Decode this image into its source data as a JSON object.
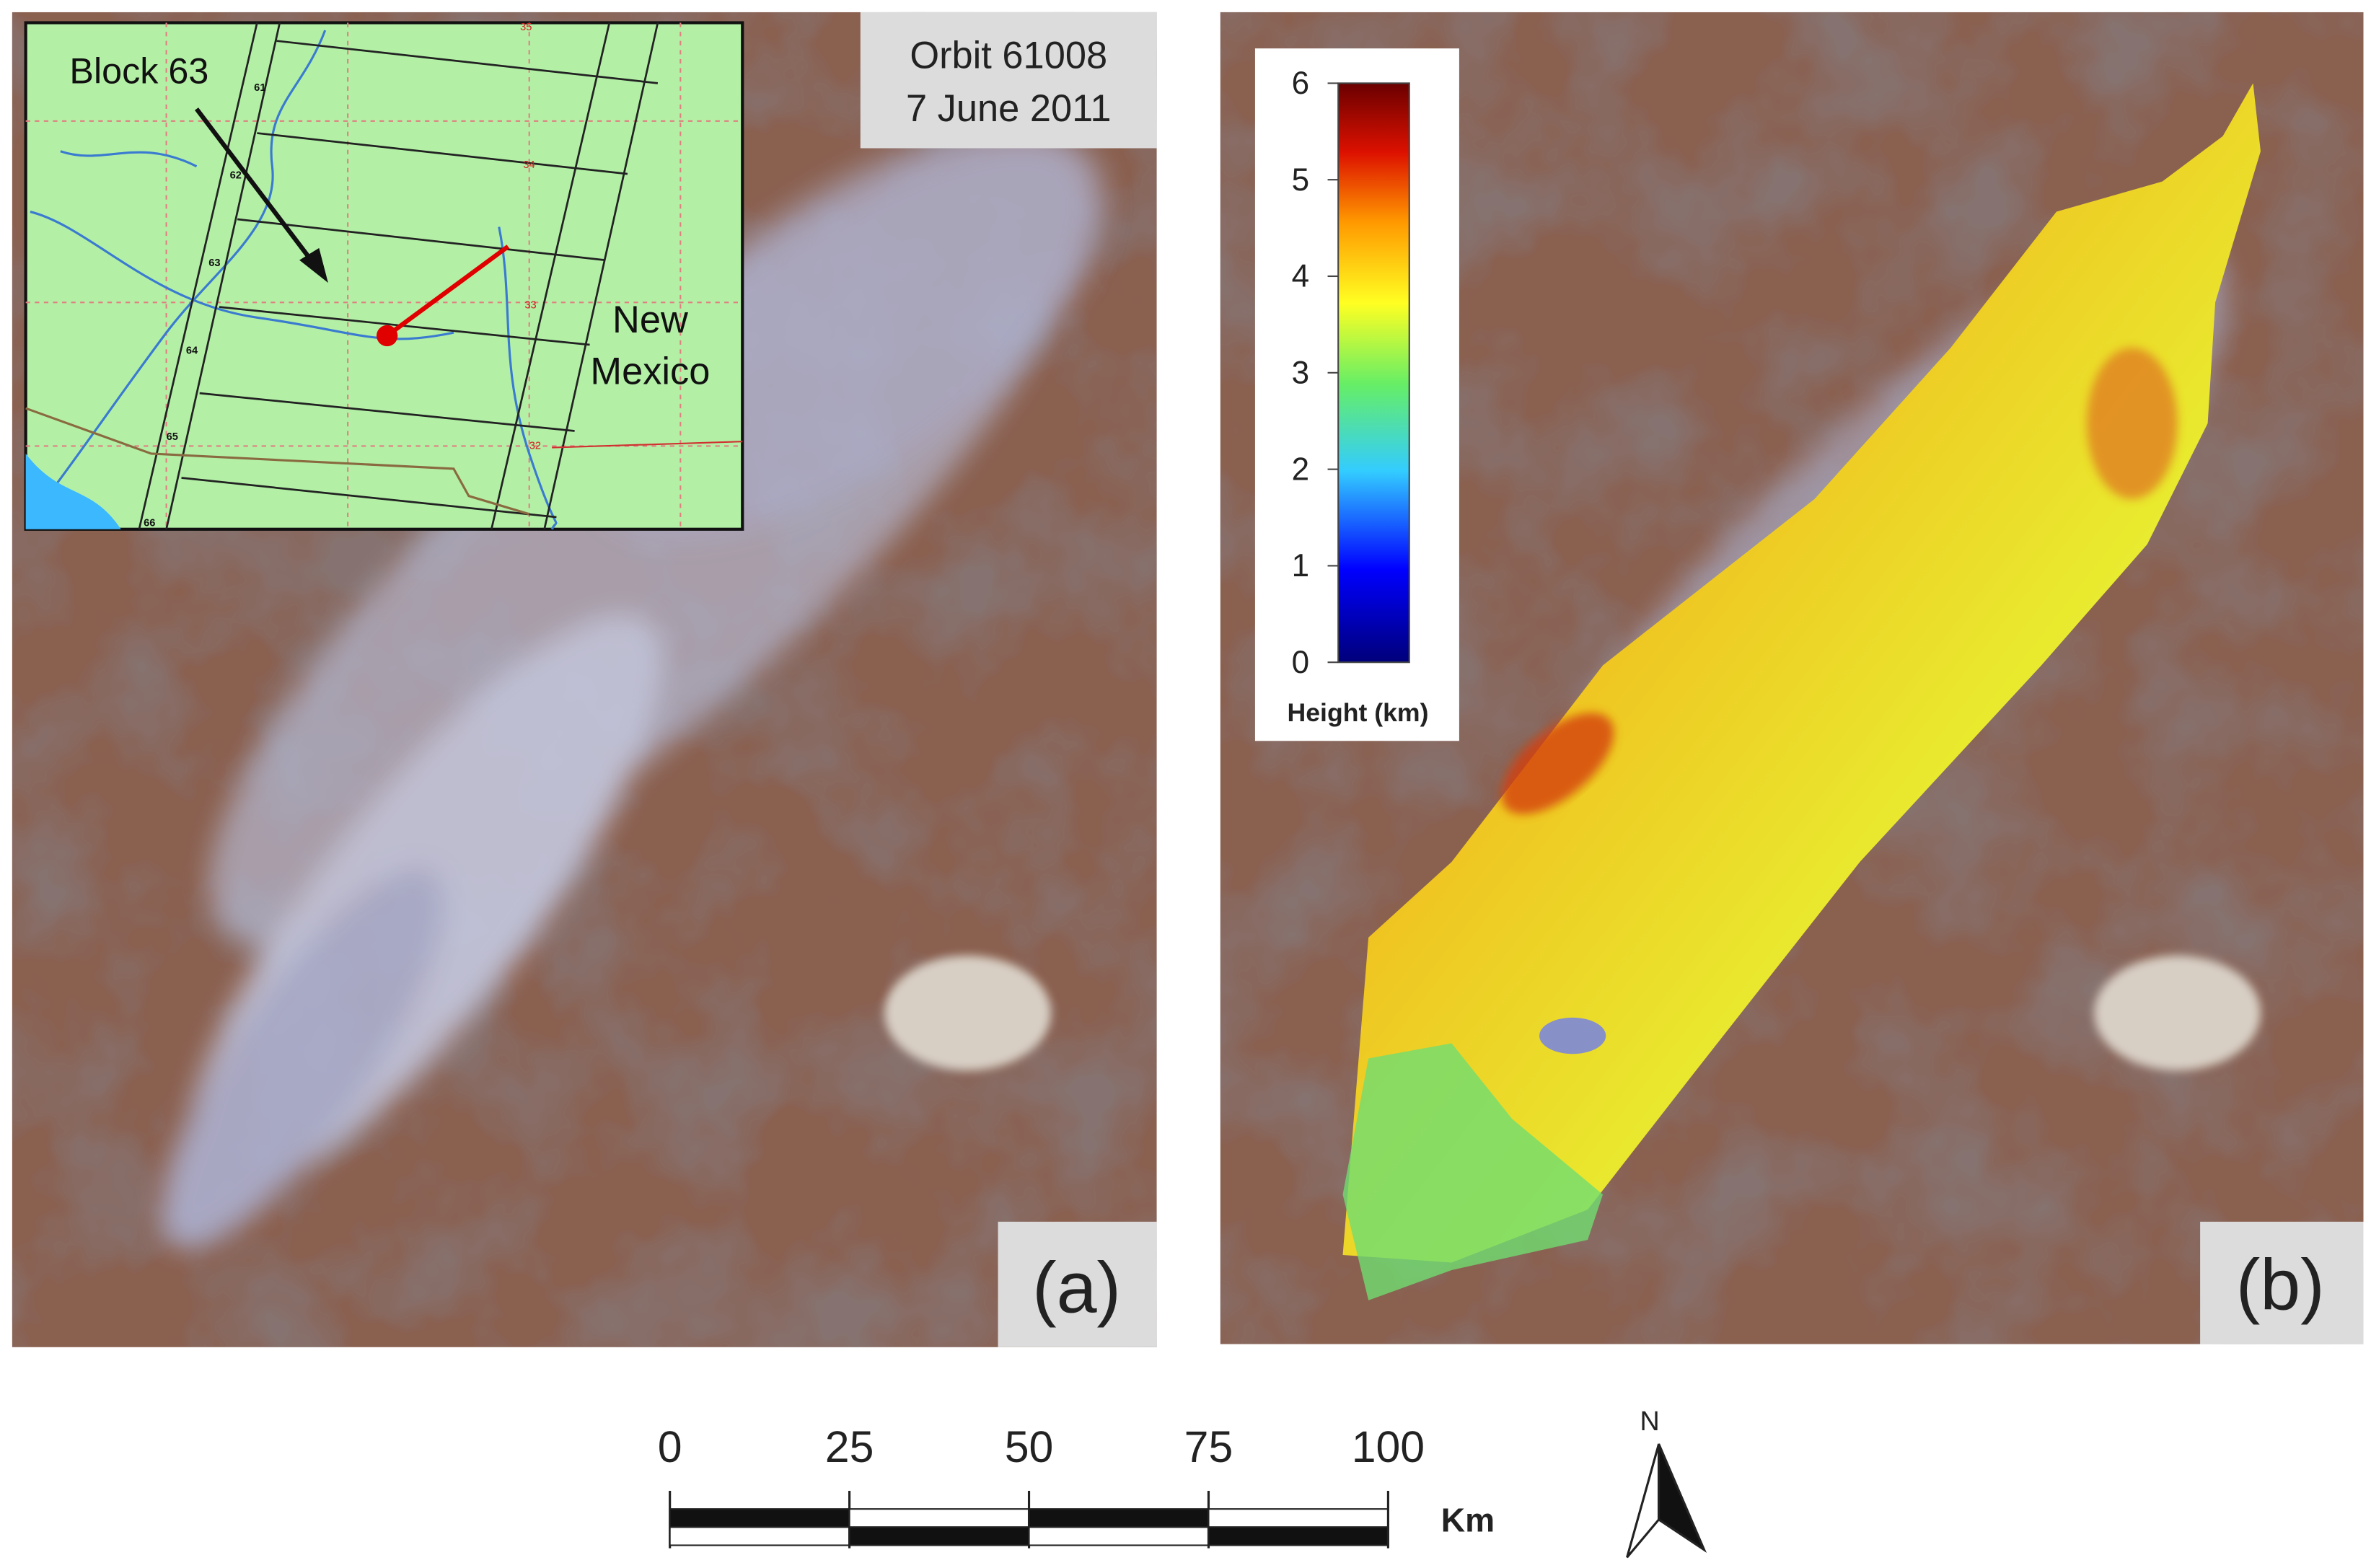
{
  "panel_a": {
    "label": "(a)",
    "orbit": "Orbit 61008",
    "date": "7 June 2011"
  },
  "inset": {
    "block_label": "Block 63",
    "state_label": [
      "New",
      "Mexico"
    ],
    "block_numbers": [
      "61",
      "62",
      "63",
      "64",
      "65",
      "66"
    ],
    "latitude_labels": [
      "35",
      "34",
      "33",
      "32"
    ]
  },
  "panel_b": {
    "label": "(b)",
    "colorbar": {
      "title": "Height (km)",
      "ticks": [
        0,
        1,
        2,
        3,
        4,
        5,
        6
      ]
    }
  },
  "scale_bar": {
    "ticks": [
      0,
      25,
      50,
      75,
      100
    ],
    "unit": "Km"
  },
  "north_arrow": {
    "label": "N"
  }
}
